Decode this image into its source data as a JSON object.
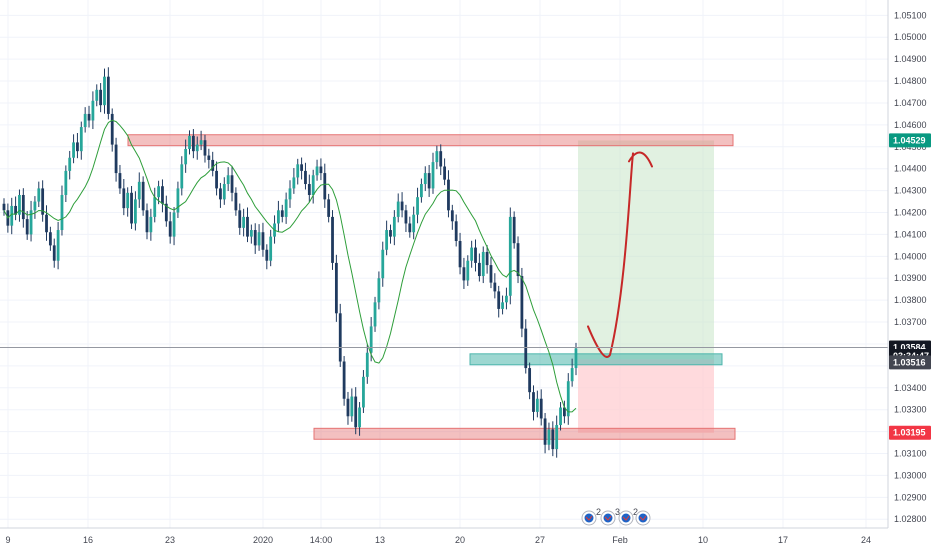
{
  "chart_data": {
    "type": "candlestick",
    "y_axis": {
      "ticks": [
        "1.05100",
        "1.05000",
        "1.04900",
        "1.04800",
        "1.04700",
        "1.04600",
        "1.04500",
        "1.04400",
        "1.04300",
        "1.04200",
        "1.04100",
        "1.04000",
        "1.03900",
        "1.03800",
        "1.03700",
        "1.03600",
        "1.03500",
        "1.03400",
        "1.03300",
        "1.03200",
        "1.03100",
        "1.03000",
        "1.02900",
        "1.02800"
      ],
      "range": [
        1.0276,
        1.0517
      ]
    },
    "x_axis": {
      "ticks": [
        "9",
        "16",
        "23",
        "2020",
        "14:00",
        "13",
        "20",
        "27",
        "Feb",
        "10",
        "17",
        "24"
      ]
    },
    "price_tags": [
      {
        "label": "1.04529",
        "value": 1.04529,
        "color": "#089981"
      },
      {
        "label": "1.03584",
        "value": 1.03584,
        "color": "#131722"
      },
      {
        "label": "03:34:47",
        "value": 1.03545,
        "color": "#131722"
      },
      {
        "label": "1.03516",
        "value": 1.03516,
        "color": "#434651"
      },
      {
        "label": "1.03195",
        "value": 1.03195,
        "color": "#f23645"
      }
    ],
    "current_price": 1.03584,
    "zones": [
      {
        "kind": "resistance",
        "from": 1.04505,
        "to": 1.04555,
        "color": "#e57373"
      },
      {
        "kind": "entry",
        "from": 1.03505,
        "to": 1.03555,
        "color": "#4db6ac"
      },
      {
        "kind": "support",
        "from": 1.03165,
        "to": 1.03215,
        "color": "#e57373"
      },
      {
        "kind": "target",
        "from": 1.0353,
        "to": 1.04529,
        "color": "#c8e6c9"
      },
      {
        "kind": "stop",
        "from": 1.03195,
        "to": 1.0353,
        "color": "#ffcdd2"
      }
    ],
    "candles_close": [
      1.0421,
      1.0414,
      1.0423,
      1.0419,
      1.0428,
      1.0417,
      1.041,
      1.0421,
      1.0425,
      1.0431,
      1.0419,
      1.0411,
      1.0405,
      1.0398,
      1.0412,
      1.0428,
      1.0439,
      1.0445,
      1.0452,
      1.0448,
      1.0459,
      1.0465,
      1.0462,
      1.0471,
      1.0476,
      1.0469,
      1.0482,
      1.0465,
      1.0451,
      1.0438,
      1.0431,
      1.0422,
      1.0429,
      1.0415,
      1.0426,
      1.0434,
      1.0421,
      1.0411,
      1.0418,
      1.0427,
      1.0432,
      1.0424,
      1.0416,
      1.0409,
      1.042,
      1.0431,
      1.0442,
      1.0449,
      1.0455,
      1.0448,
      1.0451,
      1.0453,
      1.0446,
      1.0444,
      1.0439,
      1.0431,
      1.0426,
      1.0433,
      1.0437,
      1.0429,
      1.0421,
      1.0413,
      1.0418,
      1.0409,
      1.0412,
      1.0405,
      1.0411,
      1.0403,
      1.0398,
      1.0409,
      1.0415,
      1.0421,
      1.0418,
      1.0426,
      1.0431,
      1.0436,
      1.0442,
      1.0439,
      1.0433,
      1.0428,
      1.0437,
      1.0441,
      1.0438,
      1.0426,
      1.0418,
      1.0397,
      1.0374,
      1.0352,
      1.0335,
      1.0327,
      1.0336,
      1.0322,
      1.0331,
      1.0345,
      1.0356,
      1.0368,
      1.0379,
      1.039,
      1.0403,
      1.0412,
      1.0409,
      1.0418,
      1.0425,
      1.0421,
      1.0415,
      1.0411,
      1.0419,
      1.0427,
      1.0433,
      1.0438,
      1.0431,
      1.0443,
      1.0448,
      1.0441,
      1.0435,
      1.0421,
      1.0416,
      1.0407,
      1.0395,
      1.0389,
      1.0398,
      1.0404,
      1.0397,
      1.0391,
      1.0402,
      1.0396,
      1.0388,
      1.0384,
      1.0376,
      1.0379,
      1.0382,
      1.0418,
      1.0406,
      1.0391,
      1.0367,
      1.0349,
      1.0338,
      1.0329,
      1.0335,
      1.0326,
      1.0314,
      1.0321,
      1.0312,
      1.0323,
      1.0331,
      1.0327,
      1.0343,
      1.0349,
      1.0358
    ]
  }
}
